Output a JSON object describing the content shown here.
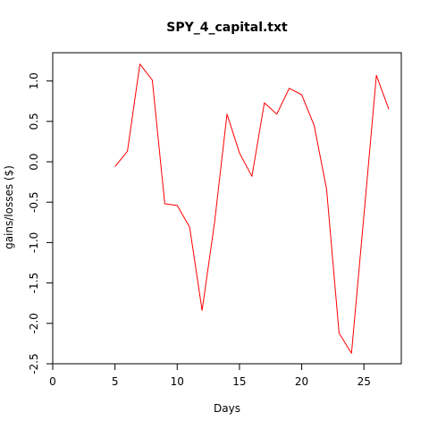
{
  "window": {
    "title": "SPY_4_capital.txt"
  },
  "chart_data": {
    "type": "line",
    "title": "SPY_4_capital.txt",
    "xlabel": "Days",
    "ylabel": "gains/losses ($)",
    "xlim": [
      0,
      28
    ],
    "ylim": [
      -2.5,
      1.35
    ],
    "xticks": [
      0,
      5,
      10,
      15,
      20,
      25
    ],
    "xtick_labels": [
      "0",
      "5",
      "10",
      "15",
      "20",
      "25"
    ],
    "yticks": [
      -2.5,
      -2.0,
      -1.5,
      -1.0,
      -0.5,
      0.0,
      0.5,
      1.0
    ],
    "ytick_labels": [
      "-2.5",
      "-2.0",
      "-1.5",
      "-1.0",
      "-0.5",
      "0.0",
      "0.5",
      "1.0"
    ],
    "grid": false,
    "legend": "none",
    "series": [
      {
        "color": "#ff0000",
        "x": [
          5,
          6,
          7,
          8,
          9,
          10,
          11,
          12,
          13,
          14,
          15,
          16,
          17,
          18,
          19,
          20,
          21,
          22,
          23,
          24,
          25,
          26,
          27
        ],
        "y": [
          -0.06,
          0.13,
          1.21,
          1.01,
          -0.52,
          -0.54,
          -0.81,
          -1.84,
          -0.75,
          0.59,
          0.11,
          -0.18,
          0.73,
          0.59,
          0.91,
          0.83,
          0.45,
          -0.34,
          -2.12,
          -2.37,
          -0.66,
          1.07,
          0.65
        ]
      }
    ]
  }
}
